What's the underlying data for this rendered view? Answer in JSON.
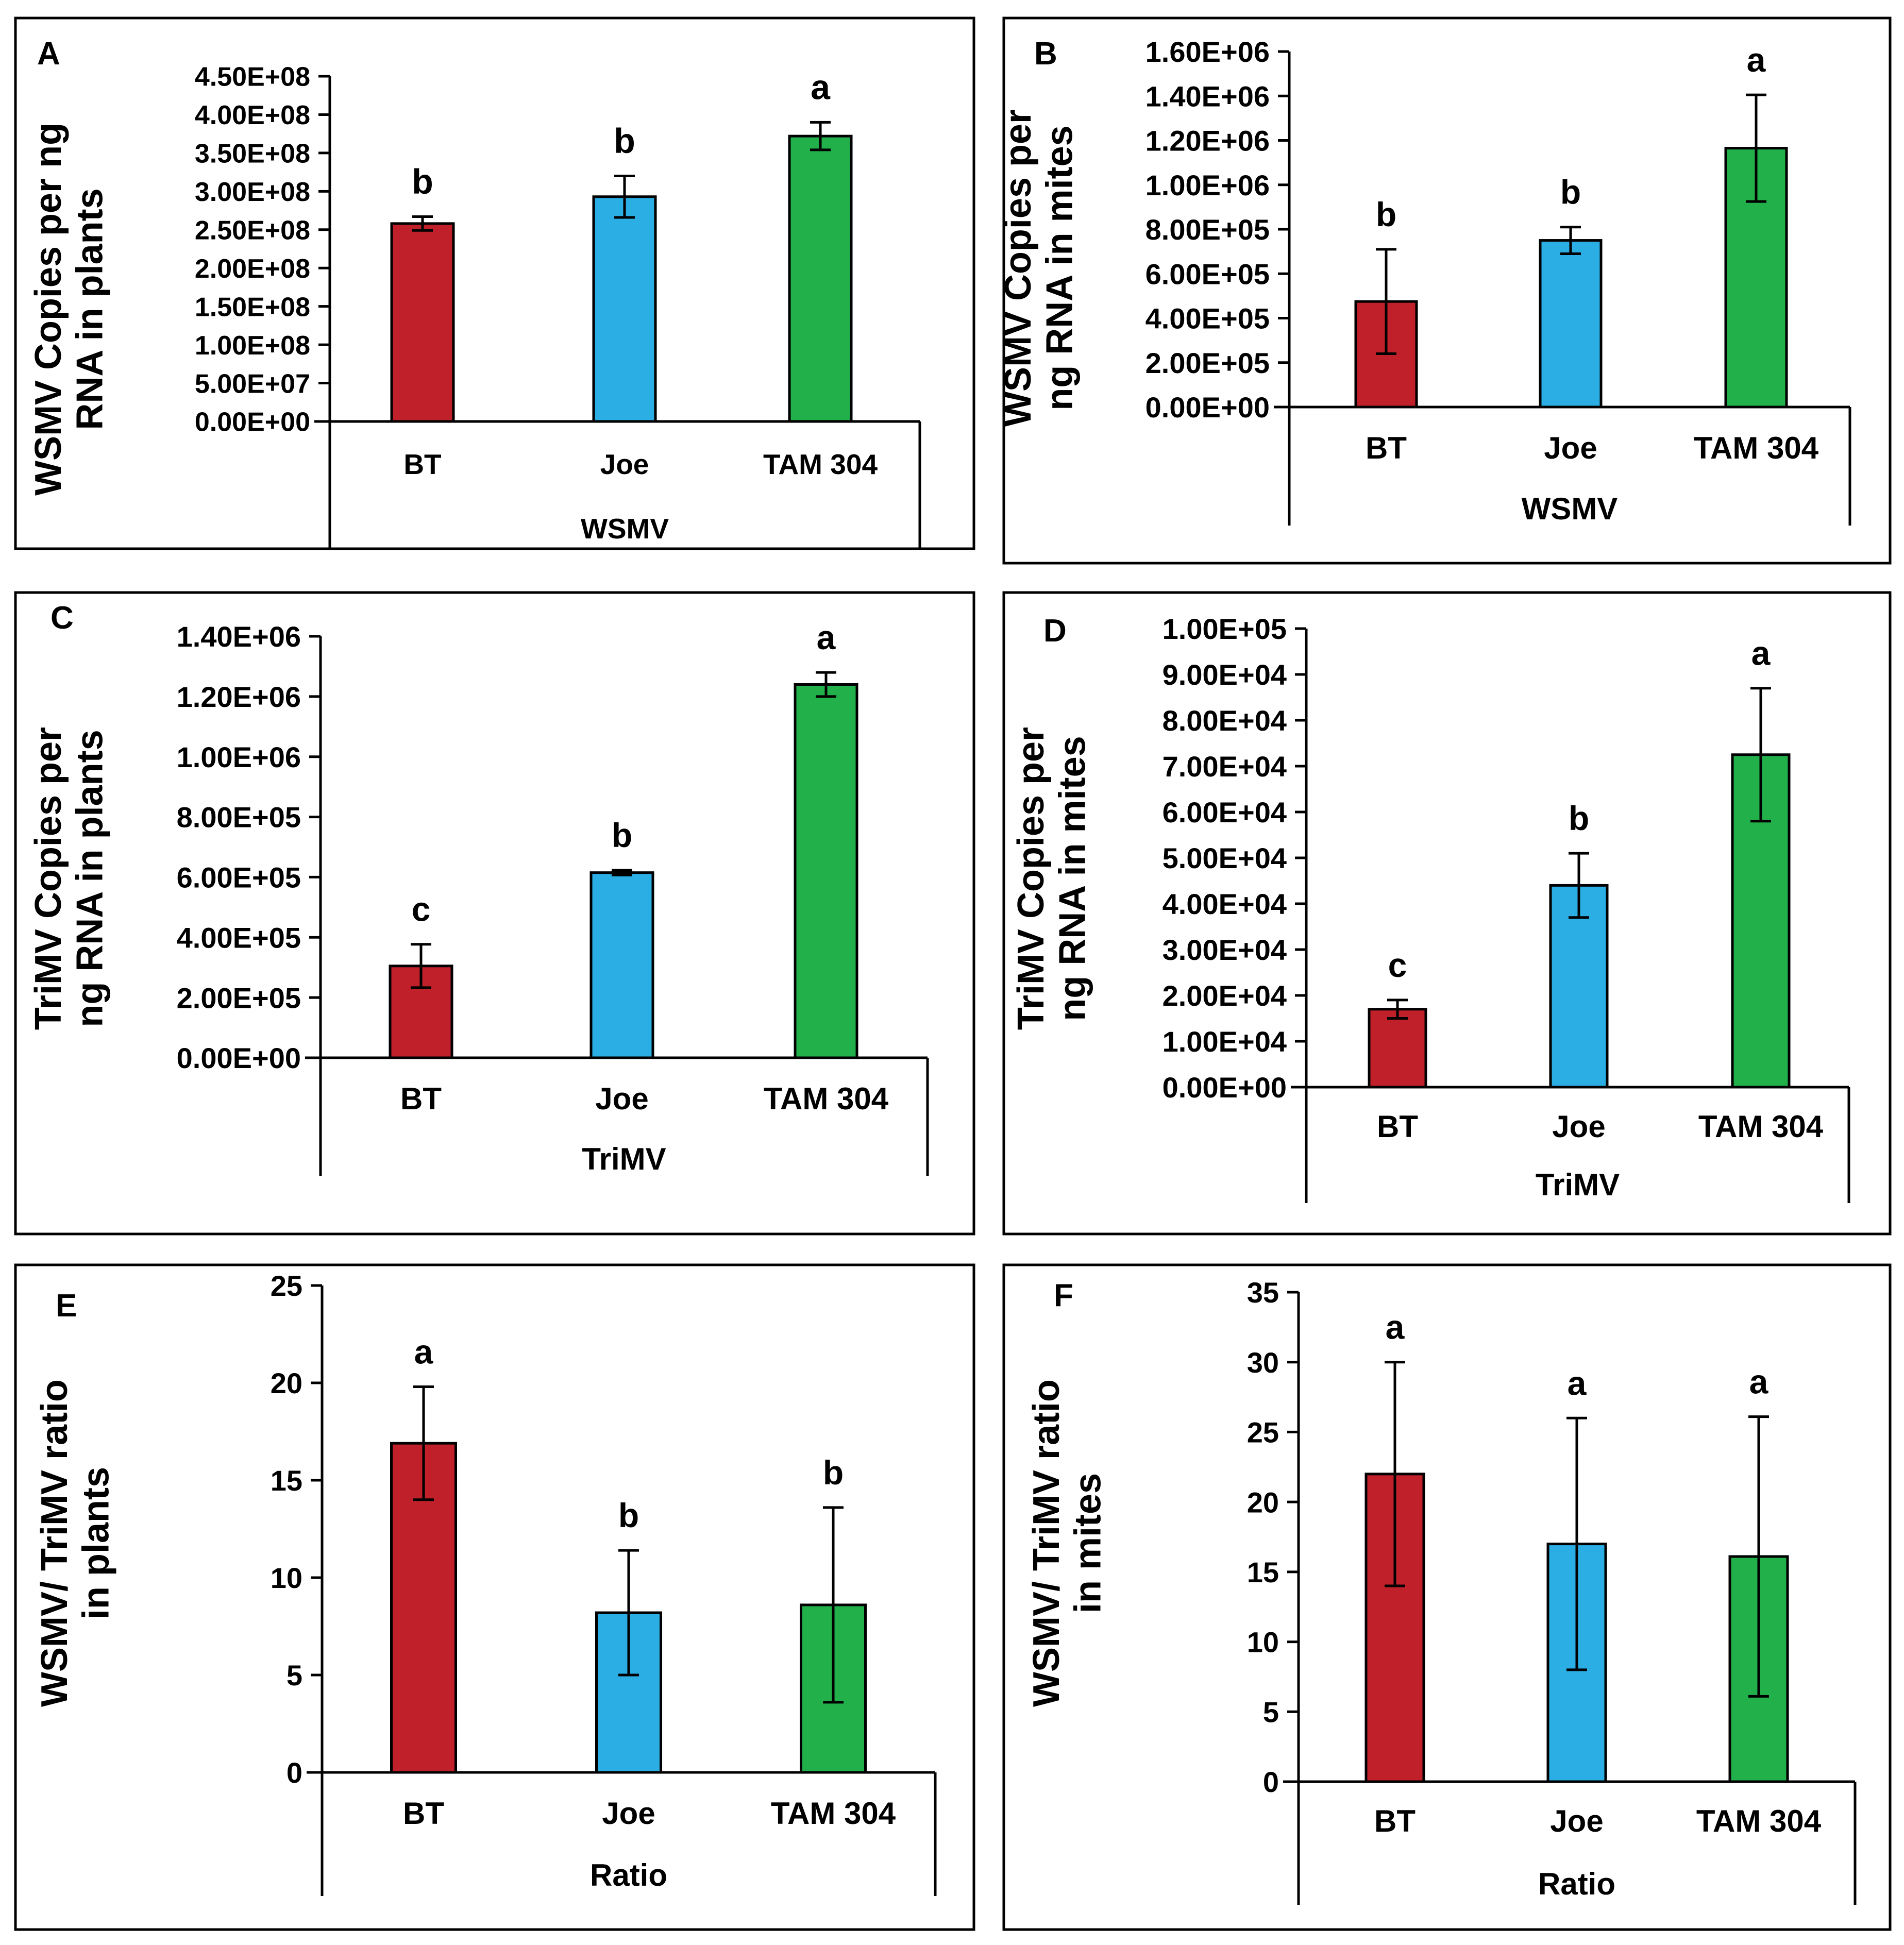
{
  "colors": {
    "BT": "#c0202a",
    "Joe": "#2aaee3",
    "TAM 304": "#22b04a",
    "axis": "#000000",
    "frame": "#000000"
  },
  "chart_data": [
    {
      "panel": "A",
      "type": "bar",
      "ylabel": [
        "WSMV Copies per ng",
        "RNA in plants"
      ],
      "xlabel": "WSMV",
      "categories": [
        "BT",
        "Joe",
        "TAM 304"
      ],
      "ylim": [
        0,
        450000000
      ],
      "yticks": [
        0,
        50000000,
        100000000,
        150000000,
        200000000,
        250000000,
        300000000,
        350000000,
        400000000,
        450000000
      ],
      "ytick_labels": [
        "0.00E+00",
        "5.00E+07",
        "1.00E+08",
        "1.50E+08",
        "2.00E+08",
        "2.50E+08",
        "3.00E+08",
        "3.50E+08",
        "4.00E+08",
        "4.50E+08"
      ],
      "values": [
        258000000,
        293000000,
        372000000
      ],
      "errors": [
        9000000,
        27000000,
        18000000
      ],
      "letters": [
        "b",
        "b",
        "a"
      ]
    },
    {
      "panel": "B",
      "type": "bar",
      "ylabel": [
        "WSMV Copies per",
        "ng RNA in mites"
      ],
      "xlabel": "WSMV",
      "categories": [
        "BT",
        "Joe",
        "TAM 304"
      ],
      "ylim": [
        0,
        1600000
      ],
      "yticks": [
        0,
        200000,
        400000,
        600000,
        800000,
        1000000,
        1200000,
        1400000,
        1600000
      ],
      "ytick_labels": [
        "0.00E+00",
        "2.00E+05",
        "4.00E+05",
        "6.00E+05",
        "8.00E+05",
        "1.00E+06",
        "1.20E+06",
        "1.40E+06",
        "1.60E+06"
      ],
      "values": [
        475000,
        750000,
        1165000
      ],
      "errors": [
        235000,
        60000,
        240000
      ],
      "letters": [
        "b",
        "b",
        "a"
      ]
    },
    {
      "panel": "C",
      "type": "bar",
      "ylabel": [
        "TriMV Copies per",
        "ng RNA in plants"
      ],
      "xlabel": "TriMV",
      "categories": [
        "BT",
        "Joe",
        "TAM 304"
      ],
      "ylim": [
        0,
        1400000
      ],
      "yticks": [
        0,
        200000,
        400000,
        600000,
        800000,
        1000000,
        1200000,
        1400000
      ],
      "ytick_labels": [
        "0.00E+00",
        "2.00E+05",
        "4.00E+05",
        "6.00E+05",
        "8.00E+05",
        "1.00E+06",
        "1.20E+06",
        "1.40E+06"
      ],
      "values": [
        305000,
        615000,
        1240000
      ],
      "errors": [
        72000,
        8000,
        40000
      ],
      "letters": [
        "c",
        "b",
        "a"
      ]
    },
    {
      "panel": "D",
      "type": "bar",
      "ylabel": [
        "TriMV Copies per",
        "ng RNA in mites"
      ],
      "xlabel": "TriMV",
      "categories": [
        "BT",
        "Joe",
        "TAM 304"
      ],
      "ylim": [
        0,
        100000
      ],
      "yticks": [
        0,
        10000,
        20000,
        30000,
        40000,
        50000,
        60000,
        70000,
        80000,
        90000,
        100000
      ],
      "ytick_labels": [
        "0.00E+00",
        "1.00E+04",
        "2.00E+04",
        "3.00E+04",
        "4.00E+04",
        "5.00E+04",
        "6.00E+04",
        "7.00E+04",
        "8.00E+04",
        "9.00E+04",
        "1.00E+05"
      ],
      "values": [
        17000,
        44000,
        72500
      ],
      "errors": [
        2000,
        7000,
        14500
      ],
      "letters": [
        "c",
        "b",
        "a"
      ]
    },
    {
      "panel": "E",
      "type": "bar",
      "ylabel": [
        "WSMV/ TriMV ratio",
        "in plants"
      ],
      "xlabel": "Ratio",
      "categories": [
        "BT",
        "Joe",
        "TAM 304"
      ],
      "ylim": [
        0,
        25
      ],
      "yticks": [
        0,
        5,
        10,
        15,
        20,
        25
      ],
      "ytick_labels": [
        "0",
        "5",
        "10",
        "15",
        "20",
        "25"
      ],
      "values": [
        16.9,
        8.2,
        8.6
      ],
      "errors": [
        2.9,
        3.2,
        5.0
      ],
      "letters": [
        "a",
        "b",
        "b"
      ]
    },
    {
      "panel": "F",
      "type": "bar",
      "ylabel": [
        "WSMV/ TriMV ratio",
        "in mites"
      ],
      "xlabel": "Ratio",
      "categories": [
        "BT",
        "Joe",
        "TAM 304"
      ],
      "ylim": [
        0,
        35
      ],
      "yticks": [
        0,
        5,
        10,
        15,
        20,
        25,
        30,
        35
      ],
      "ytick_labels": [
        "0",
        "5",
        "10",
        "15",
        "20",
        "25",
        "30",
        "35"
      ],
      "values": [
        22,
        17,
        16.1
      ],
      "errors": [
        8,
        9,
        10
      ],
      "letters": [
        "a",
        "a",
        "a"
      ]
    }
  ]
}
